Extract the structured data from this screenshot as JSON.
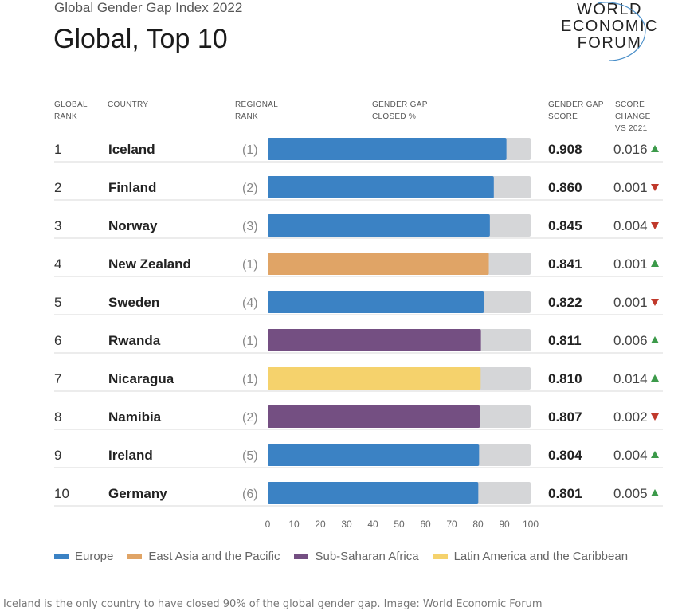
{
  "supertitle": "Global Gender Gap Index 2022",
  "title": "Global, Top 10",
  "logo": {
    "line1": "WORLD",
    "line2": "ECONOMIC",
    "line3": "FORUM"
  },
  "headers": {
    "global_rank": "GLOBAL RANK",
    "country": "COUNTRY",
    "regional_rank": "REGIONAL RANK",
    "gap_closed": "GENDER GAP CLOSED %",
    "gap_score": "GENDER GAP SCORE",
    "score_change": "SCORE CHANGE VS 2021"
  },
  "colors": {
    "Europe": "#3b82c4",
    "East Asia and the Pacific": "#e0a466",
    "Sub-Saharan Africa": "#744f82",
    "Latin America and the Caribbean": "#f5d26c",
    "track": "#d5d6d8",
    "up": "#3c9a4a",
    "down": "#c0392b"
  },
  "chart_data": {
    "type": "bar",
    "orientation": "horizontal",
    "xlim": [
      0,
      100
    ],
    "x_ticks": [
      0,
      10,
      20,
      30,
      40,
      50,
      60,
      70,
      80,
      90,
      100
    ],
    "rows": [
      {
        "rank": "1",
        "country": "Iceland",
        "regional_rank": "(1)",
        "region": "Europe",
        "value": 90.8,
        "score": "0.908",
        "change": "0.016",
        "direction": "up"
      },
      {
        "rank": "2",
        "country": "Finland",
        "regional_rank": "(2)",
        "region": "Europe",
        "value": 86.0,
        "score": "0.860",
        "change": "0.001",
        "direction": "down"
      },
      {
        "rank": "3",
        "country": "Norway",
        "regional_rank": "(3)",
        "region": "Europe",
        "value": 84.5,
        "score": "0.845",
        "change": "0.004",
        "direction": "down"
      },
      {
        "rank": "4",
        "country": "New Zealand",
        "regional_rank": "(1)",
        "region": "East Asia and the Pacific",
        "value": 84.1,
        "score": "0.841",
        "change": "0.001",
        "direction": "up"
      },
      {
        "rank": "5",
        "country": "Sweden",
        "regional_rank": "(4)",
        "region": "Europe",
        "value": 82.2,
        "score": "0.822",
        "change": "0.001",
        "direction": "down"
      },
      {
        "rank": "6",
        "country": "Rwanda",
        "regional_rank": "(1)",
        "region": "Sub-Saharan Africa",
        "value": 81.1,
        "score": "0.811",
        "change": "0.006",
        "direction": "up"
      },
      {
        "rank": "7",
        "country": "Nicaragua",
        "regional_rank": "(1)",
        "region": "Latin America and the Caribbean",
        "value": 81.0,
        "score": "0.810",
        "change": "0.014",
        "direction": "up"
      },
      {
        "rank": "8",
        "country": "Namibia",
        "regional_rank": "(2)",
        "region": "Sub-Saharan Africa",
        "value": 80.7,
        "score": "0.807",
        "change": "0.002",
        "direction": "down"
      },
      {
        "rank": "9",
        "country": "Ireland",
        "regional_rank": "(5)",
        "region": "Europe",
        "value": 80.4,
        "score": "0.804",
        "change": "0.004",
        "direction": "up"
      },
      {
        "rank": "10",
        "country": "Germany",
        "regional_rank": "(6)",
        "region": "Europe",
        "value": 80.1,
        "score": "0.801",
        "change": "0.005",
        "direction": "up"
      }
    ],
    "legend": [
      "Europe",
      "East Asia and the Pacific",
      "Sub-Saharan Africa",
      "Latin America and the Caribbean"
    ]
  },
  "caption": "Iceland is the only country to have closed 90% of the global gender gap. Image: World Economic Forum"
}
